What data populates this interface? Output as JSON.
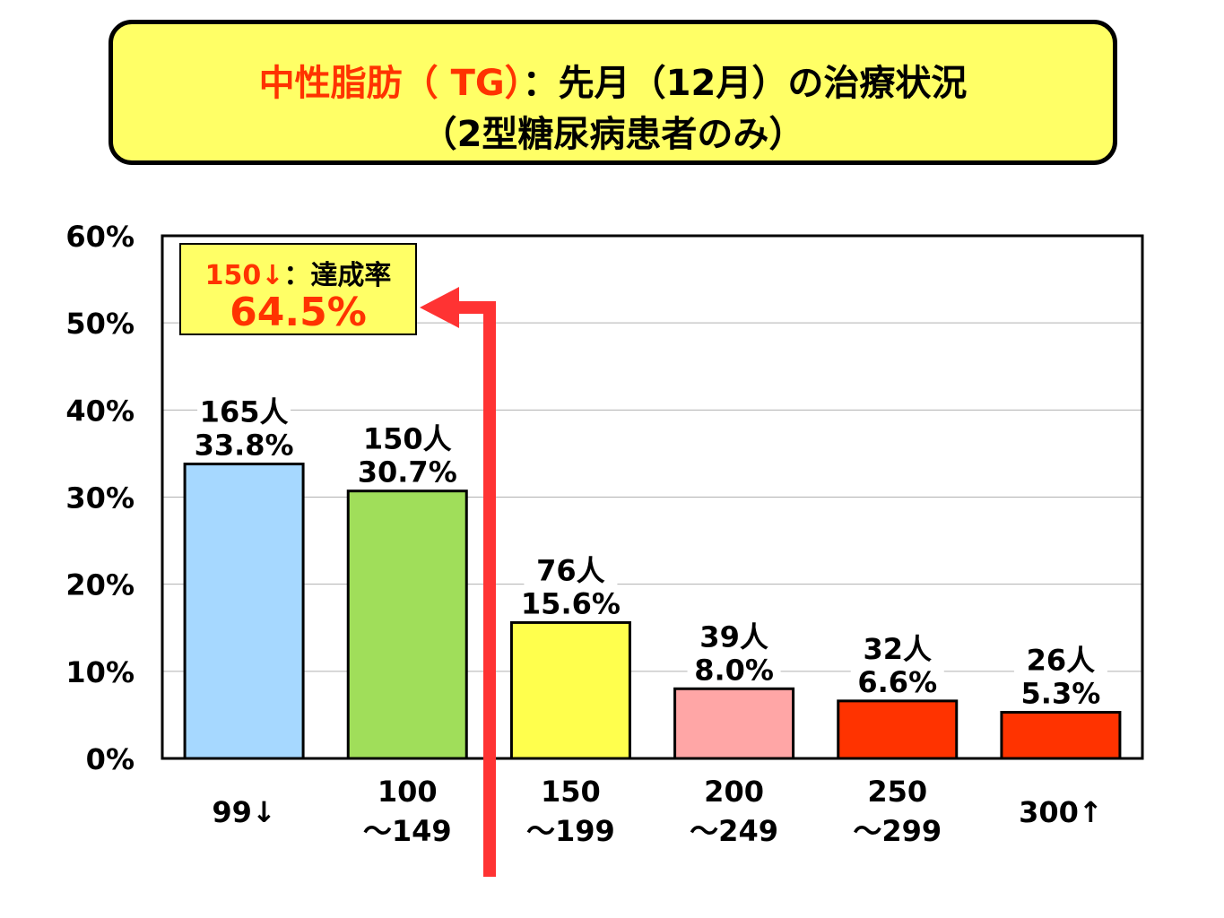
{
  "title": {
    "line1_red": "中性脂肪（ TG）",
    "line1_black": "：先月（12月）の治療状況",
    "line2": "（2型糖尿病患者のみ）"
  },
  "callout": {
    "label_red": "150↓",
    "label_black": "：達成率",
    "value": "64.5%"
  },
  "colors": {
    "title_bg": "#ffff66",
    "accent_red": "#ff3300",
    "arrow": "#ff3333"
  },
  "chart_data": {
    "type": "bar",
    "categories": [
      [
        "99↓"
      ],
      [
        "100",
        "～149"
      ],
      [
        "150",
        "～199"
      ],
      [
        "200",
        "～249"
      ],
      [
        "250",
        "～299"
      ],
      [
        "300↑"
      ]
    ],
    "values": [
      33.8,
      30.7,
      15.6,
      8.0,
      6.6,
      5.3
    ],
    "counts": [
      "165人",
      "150人",
      "76人",
      "39人",
      "32人",
      "26人"
    ],
    "value_labels": [
      "33.8%",
      "30.7%",
      "15.6%",
      "8.0%",
      "6.6%",
      "5.3%"
    ],
    "bar_colors": [
      "#a6d8ff",
      "#a0de5a",
      "#ffff4d",
      "#ffa6a6",
      "#ff3300",
      "#ff3300"
    ],
    "ylim": [
      0,
      60
    ],
    "yticks": [
      "0%",
      "10%",
      "20%",
      "30%",
      "40%",
      "50%",
      "60%"
    ],
    "grid": true,
    "legend": "none"
  }
}
